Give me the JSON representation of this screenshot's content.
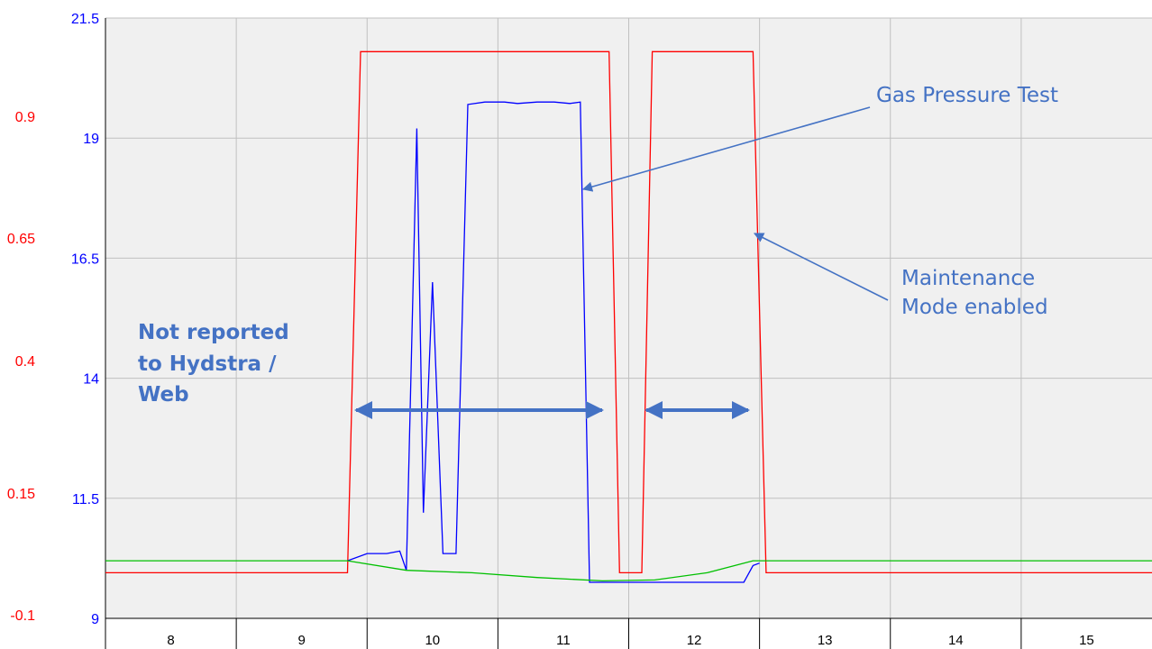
{
  "chart_data": {
    "type": "line",
    "xlabel": "",
    "ylabel": "",
    "x_categories": [
      "8",
      "9",
      "10",
      "11",
      "12",
      "13",
      "14",
      "15"
    ],
    "xlim": [
      7.5,
      15.5
    ],
    "left_axis_red": {
      "ticks": [
        "0.9",
        "0.65",
        "0.4",
        "0.15",
        "-0.1"
      ],
      "color": "#ff0000"
    },
    "left_axis_blue": {
      "ticks": [
        "21.5",
        "19",
        "16.5",
        "14",
        "11.5",
        "9"
      ],
      "ylim": [
        9,
        21.5
      ],
      "color": "#0000ff"
    },
    "grid": true,
    "series": [
      {
        "color": "#ff0000",
        "points": [
          [
            7.5,
            9.95
          ],
          [
            9.35,
            9.95
          ],
          [
            9.45,
            20.8
          ],
          [
            11.35,
            20.8
          ],
          [
            11.43,
            9.95
          ],
          [
            11.6,
            9.95
          ],
          [
            11.68,
            20.8
          ],
          [
            12.45,
            20.8
          ],
          [
            12.55,
            9.95
          ],
          [
            15.5,
            9.95
          ]
        ]
      },
      {
        "color": "#0000ff",
        "points": [
          [
            9.35,
            10.2
          ],
          [
            9.5,
            10.35
          ],
          [
            9.65,
            10.35
          ],
          [
            9.75,
            10.4
          ],
          [
            9.8,
            10.0
          ],
          [
            9.88,
            19.2
          ],
          [
            9.93,
            11.2
          ],
          [
            10.0,
            16.0
          ],
          [
            10.08,
            10.35
          ],
          [
            10.18,
            10.35
          ],
          [
            10.27,
            19.7
          ],
          [
            10.4,
            19.75
          ],
          [
            10.55,
            19.75
          ],
          [
            10.65,
            19.72
          ],
          [
            10.8,
            19.75
          ],
          [
            10.93,
            19.75
          ],
          [
            11.05,
            19.72
          ],
          [
            11.13,
            19.75
          ],
          [
            11.2,
            9.75
          ],
          [
            11.35,
            9.75
          ],
          [
            11.45,
            9.75
          ],
          [
            11.55,
            9.75
          ],
          [
            11.65,
            9.75
          ],
          [
            11.8,
            9.75
          ],
          [
            12.0,
            9.75
          ],
          [
            12.2,
            9.75
          ],
          [
            12.38,
            9.75
          ],
          [
            12.45,
            10.1
          ],
          [
            12.5,
            10.15
          ]
        ]
      },
      {
        "color": "#00c000",
        "points": [
          [
            7.5,
            10.2
          ],
          [
            9.35,
            10.2
          ],
          [
            9.8,
            10.0
          ],
          [
            10.3,
            9.95
          ],
          [
            10.8,
            9.85
          ],
          [
            11.3,
            9.78
          ],
          [
            11.7,
            9.8
          ],
          [
            12.1,
            9.95
          ],
          [
            12.45,
            10.2
          ],
          [
            15.5,
            10.2
          ]
        ]
      }
    ],
    "annotations": [
      {
        "text": "Gas Pressure Test"
      },
      {
        "text_lines": [
          "Maintenance",
          "Mode enabled"
        ]
      },
      {
        "text_lines": [
          "Not reported",
          "to Hydstra /",
          "Web"
        ]
      }
    ],
    "arrows_color": "#4472c4"
  }
}
